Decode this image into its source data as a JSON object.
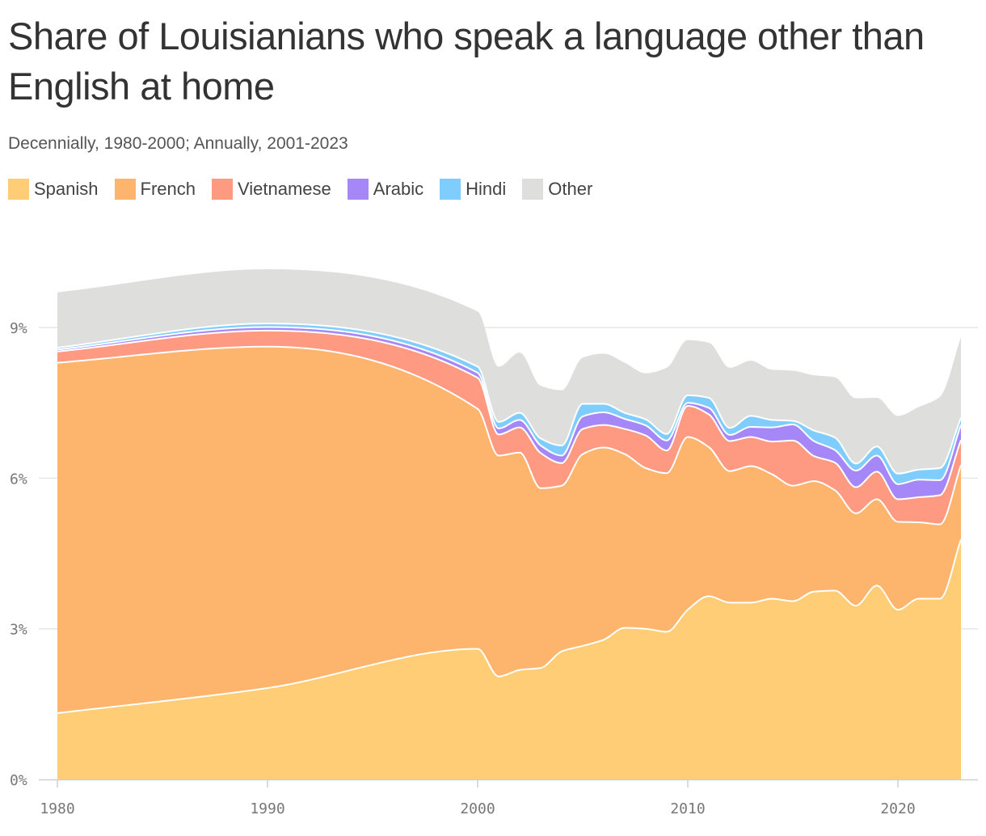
{
  "chart_data": {
    "type": "area",
    "stacked": true,
    "title": "Share of Louisianians who speak a language other than English at home",
    "subtitle": "Decennially, 1980-2000; Annually, 2001-2023",
    "xlabel": "",
    "ylabel": "",
    "xlim": [
      1980,
      2023
    ],
    "ylim": [
      0,
      10.5
    ],
    "x_ticks": [
      1980,
      1990,
      2000,
      2010,
      2020
    ],
    "y_ticks": [
      {
        "value": 0,
        "label": "0%"
      },
      {
        "value": 3,
        "label": "3%"
      },
      {
        "value": 6,
        "label": "6%"
      },
      {
        "value": 9,
        "label": "9%"
      }
    ],
    "grid": "horizontal",
    "legend_placement": "top-left",
    "x": [
      1980,
      1990,
      2000,
      2001,
      2002,
      2003,
      2004,
      2005,
      2006,
      2007,
      2008,
      2009,
      2010,
      2011,
      2012,
      2013,
      2014,
      2015,
      2016,
      2017,
      2018,
      2019,
      2020,
      2021,
      2022,
      2023
    ],
    "series": [
      {
        "name": "Spanish",
        "color": "#fecd76",
        "values": [
          1.32,
          1.82,
          2.6,
          2.05,
          2.18,
          2.22,
          2.55,
          2.66,
          2.78,
          3.02,
          3.0,
          2.94,
          3.38,
          3.65,
          3.52,
          3.52,
          3.6,
          3.55,
          3.74,
          3.76,
          3.46,
          3.86,
          3.38,
          3.6,
          3.6,
          4.78
        ]
      },
      {
        "name": "French",
        "color": "#fdb46c",
        "values": [
          6.98,
          6.8,
          4.78,
          4.4,
          4.33,
          3.58,
          3.3,
          3.82,
          3.83,
          3.46,
          3.2,
          3.16,
          3.44,
          2.97,
          2.62,
          2.72,
          2.48,
          2.3,
          2.2,
          2.0,
          1.84,
          1.72,
          1.75,
          1.52,
          1.48,
          1.48
        ]
      },
      {
        "name": "Vietnamese",
        "color": "#ff9a82",
        "values": [
          0.22,
          0.32,
          0.62,
          0.42,
          0.5,
          0.7,
          0.45,
          0.5,
          0.45,
          0.5,
          0.65,
          0.45,
          0.62,
          0.65,
          0.6,
          0.58,
          0.65,
          0.9,
          0.5,
          0.55,
          0.52,
          0.55,
          0.45,
          0.5,
          0.58,
          0.5
        ]
      },
      {
        "name": "Arabic",
        "color": "#a687f8",
        "values": [
          0.04,
          0.07,
          0.1,
          0.12,
          0.15,
          0.15,
          0.15,
          0.25,
          0.25,
          0.2,
          0.2,
          0.2,
          0.06,
          0.13,
          0.12,
          0.2,
          0.28,
          0.32,
          0.3,
          0.25,
          0.33,
          0.32,
          0.3,
          0.35,
          0.3,
          0.3
        ]
      },
      {
        "name": "Hindi",
        "color": "#7fcdfc",
        "values": [
          0.04,
          0.07,
          0.12,
          0.13,
          0.14,
          0.14,
          0.2,
          0.25,
          0.17,
          0.12,
          0.12,
          0.13,
          0.15,
          0.2,
          0.14,
          0.22,
          0.15,
          0.07,
          0.21,
          0.25,
          0.14,
          0.18,
          0.21,
          0.2,
          0.24,
          0.14
        ]
      },
      {
        "name": "Other",
        "color": "#dedfdd",
        "values": [
          1.1,
          1.08,
          1.1,
          1.1,
          1.2,
          1.05,
          1.1,
          0.92,
          1.0,
          1.0,
          0.92,
          1.32,
          1.1,
          1.1,
          1.2,
          1.1,
          1.0,
          1.0,
          1.1,
          1.2,
          1.3,
          0.97,
          1.15,
          1.25,
          1.42,
          1.6
        ]
      }
    ]
  }
}
